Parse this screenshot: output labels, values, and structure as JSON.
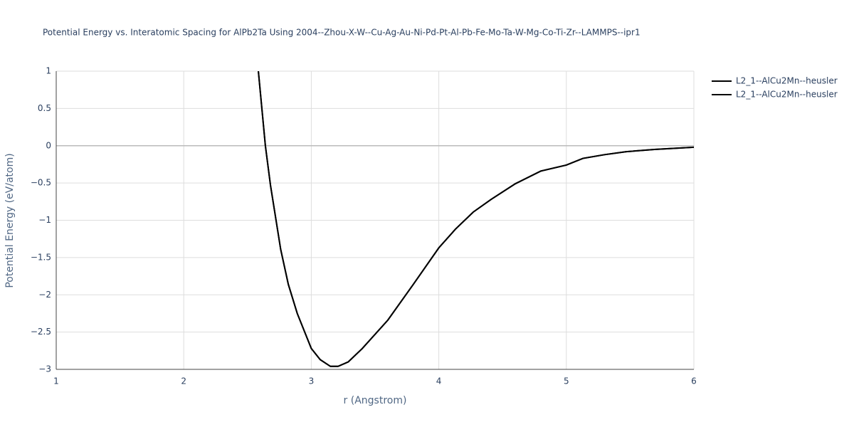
{
  "chart_data": {
    "type": "line",
    "title": "Potential Energy vs. Interatomic Spacing for AlPb2Ta Using 2004--Zhou-X-W--Cu-Ag-Au-Ni-Pd-Pt-Al-Pb-Fe-Mo-Ta-W-Mg-Co-Ti-Zr--LAMMPS--ipr1",
    "x_label": "r (Angstrom)",
    "y_label": "Potential Energy (eV/atom)",
    "xlim": [
      1,
      6
    ],
    "xticks": [
      1,
      2,
      3,
      4,
      5,
      6
    ],
    "ylim": [
      -3,
      1
    ],
    "yticks": [
      {
        "value": -3,
        "label": "−3"
      },
      {
        "value": -2.5,
        "label": "−2.5"
      },
      {
        "value": -2,
        "label": "−2"
      },
      {
        "value": -1.5,
        "label": "−1.5"
      },
      {
        "value": -1,
        "label": "−1"
      },
      {
        "value": -0.5,
        "label": "−0.5"
      },
      0,
      0.5,
      1
    ],
    "grid": true,
    "x": [
      2.585,
      2.64,
      2.68,
      2.76,
      2.82,
      2.89,
      3.0,
      3.07,
      3.15,
      3.21,
      3.29,
      3.4,
      3.6,
      3.8,
      4.0,
      4.13,
      4.27,
      4.41,
      4.6,
      4.8,
      5.0,
      5.13,
      5.3,
      5.47,
      5.69,
      6.0
    ],
    "series": [
      {
        "name": "L2_1--AlCu2Mn--heusler",
        "color": "#000000",
        "values": [
          1.0,
          0,
          -0.53,
          -1.39,
          -1.86,
          -2.25,
          -2.72,
          -2.87,
          -2.96,
          -2.96,
          -2.9,
          -2.72,
          -2.34,
          -1.86,
          -1.37,
          -1.12,
          -0.89,
          -0.72,
          -0.51,
          -0.34,
          -0.26,
          -0.17,
          -0.12,
          -0.08,
          -0.05,
          -0.02
        ]
      },
      {
        "name": "L2_1--AlCu2Mn--heusler",
        "color": "#000000",
        "values": [
          1.0,
          0,
          -0.53,
          -1.39,
          -1.86,
          -2.25,
          -2.72,
          -2.87,
          -2.96,
          -2.96,
          -2.9,
          -2.72,
          -2.34,
          -1.86,
          -1.37,
          -1.12,
          -0.89,
          -0.72,
          -0.51,
          -0.34,
          -0.26,
          -0.17,
          -0.12,
          -0.08,
          -0.05,
          -0.02
        ]
      }
    ]
  }
}
